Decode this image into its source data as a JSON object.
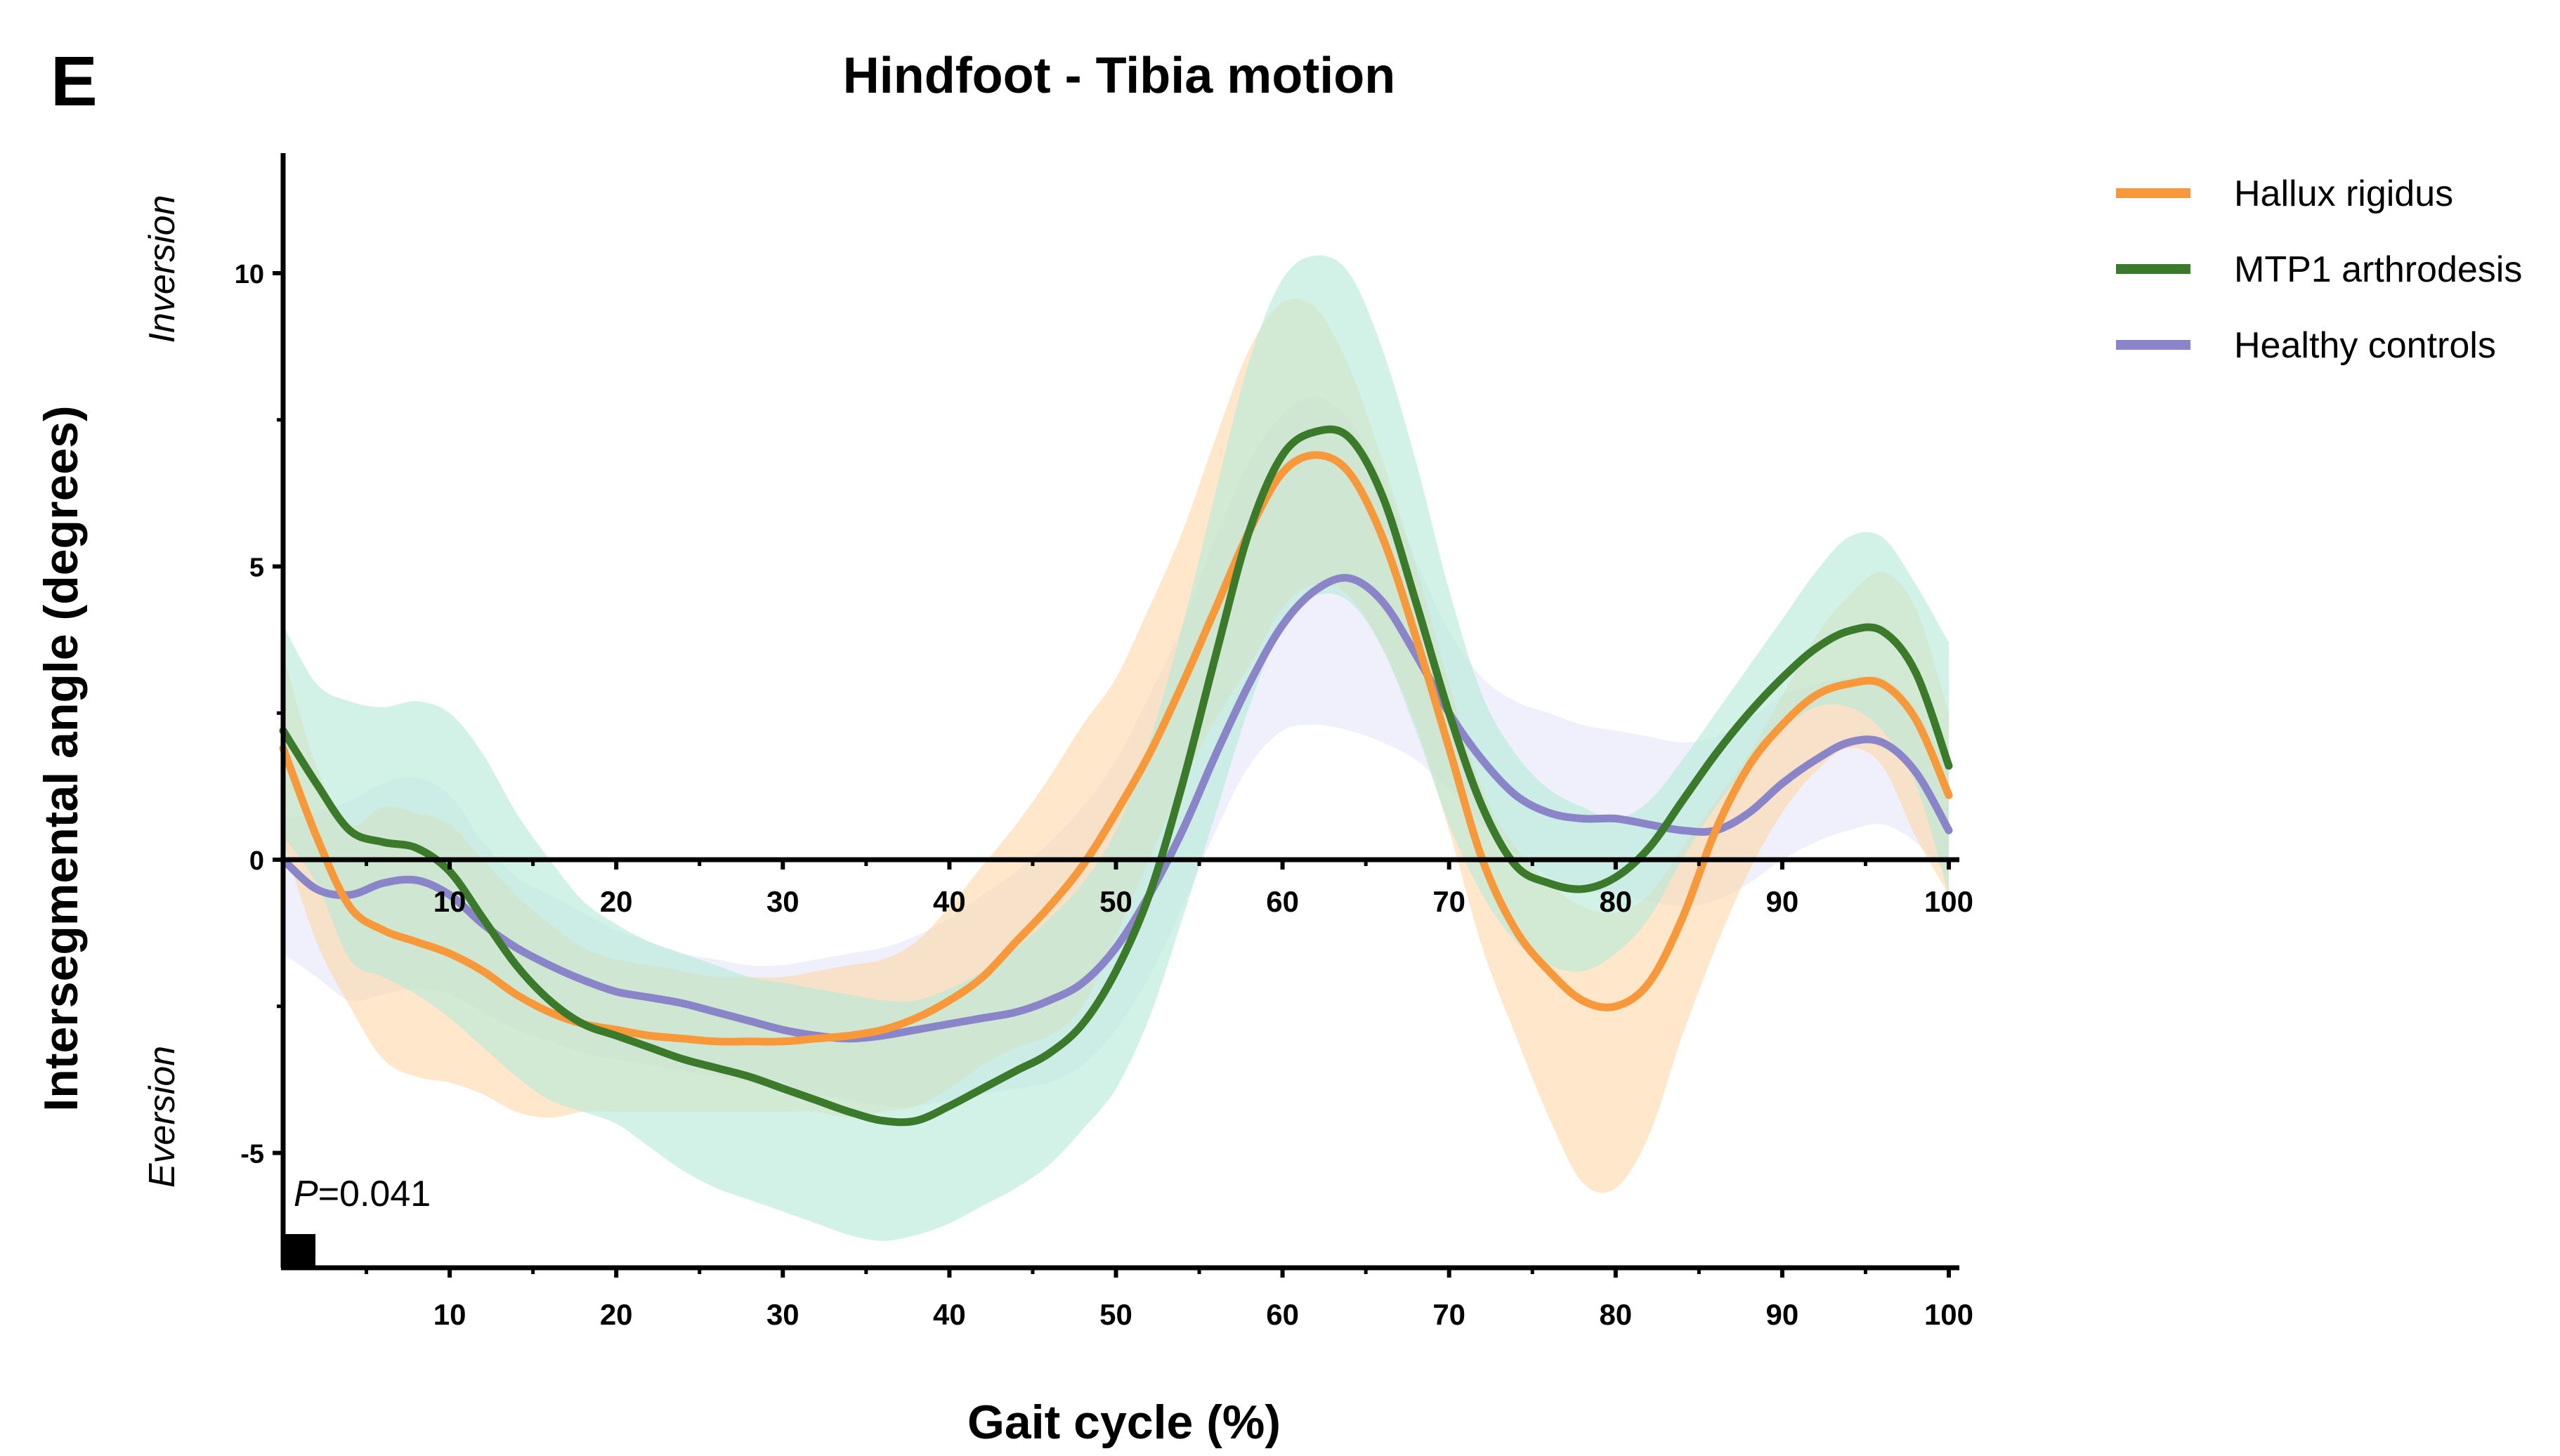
{
  "chart_data": {
    "type": "line",
    "panel_label": "E",
    "title": "Hindfoot - Tibia motion",
    "xlabel": "Gait cycle (%)",
    "ylabel": "Intersegmental angle (degrees)",
    "y_direction_labels": {
      "positive": "Inversion",
      "negative": "Eversion"
    },
    "xlim": [
      0,
      100
    ],
    "ylim": [
      -7,
      12
    ],
    "x_ticks": [
      10,
      20,
      30,
      40,
      50,
      60,
      70,
      80,
      90,
      100
    ],
    "x_tick_labels": [
      "10",
      "20",
      "30",
      "40",
      "50",
      "60",
      "70",
      "80",
      "90",
      "100"
    ],
    "y_ticks": [
      -5,
      0,
      5,
      10
    ],
    "y_tick_labels": [
      "-5",
      "0",
      "5",
      "10"
    ],
    "grid": false,
    "legend_position": "top-right",
    "annotation": {
      "prefix": "P",
      "text": "=0.041",
      "x_range": [
        0,
        2
      ]
    },
    "x": [
      0,
      2,
      4,
      6,
      8,
      10,
      12,
      14,
      16,
      18,
      20,
      22,
      24,
      26,
      28,
      30,
      32,
      34,
      36,
      38,
      40,
      42,
      44,
      46,
      48,
      50,
      52,
      54,
      56,
      58,
      60,
      62,
      64,
      66,
      68,
      70,
      72,
      74,
      76,
      78,
      80,
      82,
      84,
      86,
      88,
      90,
      92,
      94,
      96,
      98,
      100
    ],
    "series": [
      {
        "name": "Hallux rigidus",
        "color": "#f7993a",
        "band_color": "#fdd9aa",
        "mean": [
          1.9,
          0.4,
          -0.8,
          -1.2,
          -1.4,
          -1.6,
          -1.9,
          -2.3,
          -2.6,
          -2.8,
          -2.9,
          -3.0,
          -3.05,
          -3.1,
          -3.1,
          -3.1,
          -3.05,
          -3.0,
          -2.9,
          -2.7,
          -2.4,
          -2.0,
          -1.4,
          -0.8,
          -0.1,
          0.8,
          1.8,
          3.0,
          4.3,
          5.6,
          6.6,
          6.9,
          6.6,
          5.5,
          3.8,
          1.9,
          0.0,
          -1.2,
          -1.9,
          -2.4,
          -2.5,
          -2.1,
          -1.0,
          0.5,
          1.6,
          2.3,
          2.8,
          3.0,
          3.0,
          2.4,
          1.1
        ],
        "upper": [
          3.5,
          1.6,
          0.6,
          0.9,
          0.8,
          0.6,
          0.0,
          -0.6,
          -1.1,
          -1.5,
          -1.7,
          -1.8,
          -1.9,
          -2.0,
          -2.0,
          -2.0,
          -1.9,
          -1.8,
          -1.7,
          -1.4,
          -0.8,
          -0.1,
          0.6,
          1.4,
          2.3,
          3.1,
          4.3,
          5.6,
          7.2,
          8.7,
          9.5,
          9.4,
          8.4,
          6.8,
          5.0,
          3.0,
          1.2,
          0.2,
          -0.4,
          -0.8,
          -0.9,
          -0.6,
          0.2,
          1.0,
          1.8,
          2.8,
          3.8,
          4.5,
          4.9,
          4.3,
          2.5
        ],
        "lower": [
          0.3,
          -1.4,
          -2.5,
          -3.4,
          -3.7,
          -3.8,
          -4.0,
          -4.3,
          -4.4,
          -4.3,
          -4.3,
          -4.3,
          -4.3,
          -4.3,
          -4.3,
          -4.3,
          -4.3,
          -4.4,
          -4.3,
          -4.2,
          -3.9,
          -3.5,
          -3.2,
          -3.0,
          -2.5,
          -1.3,
          0.0,
          1.3,
          2.4,
          3.3,
          4.3,
          4.7,
          4.5,
          3.6,
          2.3,
          0.5,
          -1.5,
          -3.0,
          -4.4,
          -5.5,
          -5.6,
          -4.7,
          -3.0,
          -1.5,
          -0.2,
          0.8,
          1.5,
          1.9,
          1.6,
          0.4,
          -0.6
        ]
      },
      {
        "name": "MTP1 arthrodesis",
        "color": "#3b7a2a",
        "band_color": "#b6ead8",
        "mean": [
          2.2,
          1.3,
          0.5,
          0.3,
          0.2,
          -0.2,
          -1.0,
          -1.8,
          -2.4,
          -2.8,
          -3.0,
          -3.2,
          -3.4,
          -3.55,
          -3.7,
          -3.9,
          -4.1,
          -4.3,
          -4.45,
          -4.45,
          -4.2,
          -3.9,
          -3.6,
          -3.3,
          -2.8,
          -1.9,
          -0.6,
          1.3,
          3.5,
          5.6,
          6.9,
          7.3,
          7.2,
          6.2,
          4.4,
          2.5,
          0.9,
          -0.1,
          -0.4,
          -0.5,
          -0.3,
          0.2,
          1.0,
          1.8,
          2.5,
          3.1,
          3.6,
          3.9,
          3.9,
          3.2,
          1.6
        ],
        "upper": [
          4.0,
          3.0,
          2.7,
          2.6,
          2.7,
          2.5,
          1.8,
          0.8,
          0.0,
          -0.7,
          -1.1,
          -1.4,
          -1.6,
          -1.8,
          -2.0,
          -2.1,
          -2.2,
          -2.3,
          -2.4,
          -2.4,
          -2.2,
          -1.9,
          -1.5,
          -1.0,
          -0.4,
          0.5,
          2.0,
          4.0,
          6.3,
          8.5,
          9.9,
          10.3,
          10.0,
          8.7,
          6.8,
          4.6,
          2.8,
          1.8,
          1.2,
          0.9,
          0.7,
          1.0,
          1.7,
          2.5,
          3.3,
          4.1,
          4.9,
          5.5,
          5.5,
          4.7,
          3.7
        ],
        "lower": [
          0.4,
          -0.4,
          -1.7,
          -2.0,
          -2.3,
          -2.7,
          -3.2,
          -3.7,
          -4.1,
          -4.3,
          -4.5,
          -4.9,
          -5.3,
          -5.6,
          -5.8,
          -6.0,
          -6.2,
          -6.4,
          -6.5,
          -6.4,
          -6.2,
          -5.9,
          -5.6,
          -5.2,
          -4.6,
          -3.9,
          -2.7,
          -1.0,
          0.8,
          2.6,
          4.0,
          4.5,
          4.4,
          3.6,
          2.2,
          0.6,
          -0.6,
          -1.4,
          -1.8,
          -1.9,
          -1.6,
          -1.0,
          0.0,
          0.9,
          1.6,
          2.2,
          2.6,
          2.6,
          2.2,
          1.3,
          -0.6
        ]
      },
      {
        "name": "Healthy controls",
        "color": "#8a85c8",
        "band_color": "#e7e6fb",
        "mean": [
          0.0,
          -0.5,
          -0.6,
          -0.4,
          -0.35,
          -0.6,
          -1.1,
          -1.5,
          -1.8,
          -2.05,
          -2.25,
          -2.35,
          -2.45,
          -2.6,
          -2.75,
          -2.9,
          -3.0,
          -3.05,
          -3.0,
          -2.9,
          -2.8,
          -2.7,
          -2.6,
          -2.4,
          -2.1,
          -1.5,
          -0.6,
          0.5,
          1.8,
          3.0,
          4.0,
          4.6,
          4.8,
          4.4,
          3.5,
          2.5,
          1.7,
          1.1,
          0.8,
          0.7,
          0.7,
          0.6,
          0.5,
          0.5,
          0.8,
          1.3,
          1.7,
          2.0,
          2.0,
          1.5,
          0.5
        ],
        "upper": [
          0.7,
          0.8,
          1.0,
          1.3,
          1.4,
          1.1,
          0.3,
          -0.3,
          -0.6,
          -0.9,
          -1.2,
          -1.4,
          -1.6,
          -1.7,
          -1.8,
          -1.8,
          -1.7,
          -1.6,
          -1.5,
          -1.3,
          -1.0,
          -0.6,
          -0.2,
          0.3,
          0.9,
          1.7,
          2.8,
          4.0,
          5.5,
          6.8,
          7.6,
          7.9,
          7.5,
          6.5,
          5.1,
          3.9,
          3.1,
          2.7,
          2.5,
          2.3,
          2.2,
          2.1,
          2.0,
          2.1,
          2.4,
          2.8,
          3.0,
          3.1,
          3.1,
          2.6,
          1.5
        ],
        "lower": [
          -1.6,
          -2.0,
          -2.4,
          -2.3,
          -2.2,
          -2.3,
          -2.6,
          -2.9,
          -3.1,
          -3.3,
          -3.4,
          -3.5,
          -3.6,
          -3.7,
          -3.8,
          -3.9,
          -4.0,
          -4.1,
          -4.2,
          -4.2,
          -4.1,
          -4.0,
          -3.9,
          -3.8,
          -3.5,
          -2.9,
          -2.0,
          -0.8,
          0.5,
          1.6,
          2.2,
          2.3,
          2.2,
          2.0,
          1.7,
          1.2,
          0.6,
          0.1,
          -0.3,
          -0.5,
          -0.6,
          -0.7,
          -0.8,
          -0.7,
          -0.4,
          0.0,
          0.3,
          0.5,
          0.6,
          0.3,
          -0.3
        ]
      }
    ]
  }
}
